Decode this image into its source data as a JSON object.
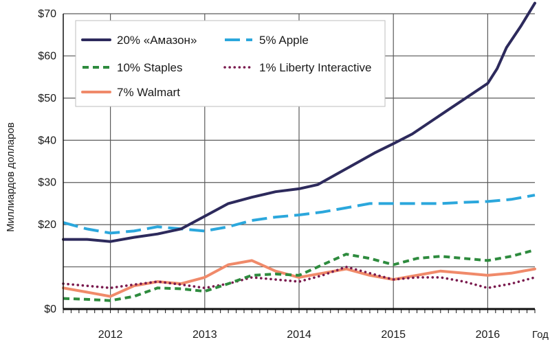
{
  "chart_data": {
    "type": "line",
    "title": "",
    "xlabel": "Год",
    "ylabel": "Миллиардов долларов",
    "x_ticks": [
      2012,
      2013,
      2014,
      2015,
      2016
    ],
    "x_tick_labels": [
      "2012",
      "2013",
      "2014",
      "2015",
      "2016"
    ],
    "xlim": [
      2011.5,
      2016.5
    ],
    "ylim": [
      0,
      70
    ],
    "y_ticks": [
      0,
      10,
      20,
      30,
      40,
      50,
      60,
      70
    ],
    "y_tick_labels": [
      "$0",
      "",
      "$20",
      "$30",
      "$40",
      "$50",
      "$60",
      "$70"
    ],
    "grid": true,
    "legend_position": "top-left",
    "series": [
      {
        "name": "20% «Амазон»",
        "color": "#2d2a5c",
        "dash": "solid",
        "x": [
          2011.5,
          2011.75,
          2012.0,
          2012.25,
          2012.5,
          2012.75,
          2013.0,
          2013.25,
          2013.5,
          2013.75,
          2014.0,
          2014.2,
          2014.4,
          2014.6,
          2014.8,
          2015.0,
          2015.2,
          2015.4,
          2015.6,
          2015.8,
          2016.0,
          2016.1,
          2016.2,
          2016.35,
          2016.5
        ],
        "values": [
          16.5,
          16.5,
          16.0,
          17.0,
          17.8,
          19.0,
          22.0,
          25.0,
          26.5,
          27.8,
          28.5,
          29.5,
          32.0,
          34.5,
          37.0,
          39.2,
          41.5,
          44.5,
          47.5,
          50.5,
          53.5,
          57.0,
          62.0,
          67.0,
          72.5
        ]
      },
      {
        "name": "5% Apple",
        "color": "#2ba7dc",
        "dash": "long-dash",
        "x": [
          2011.5,
          2011.75,
          2012.0,
          2012.25,
          2012.5,
          2012.75,
          2013.0,
          2013.25,
          2013.5,
          2013.75,
          2014.0,
          2014.25,
          2014.5,
          2014.75,
          2015.0,
          2015.25,
          2015.5,
          2015.75,
          2016.0,
          2016.25,
          2016.5
        ],
        "values": [
          20.5,
          19.0,
          18.0,
          18.5,
          19.5,
          19.0,
          18.5,
          19.5,
          21.0,
          21.8,
          22.3,
          23.0,
          24.0,
          25.0,
          25.0,
          25.0,
          25.0,
          25.3,
          25.5,
          26.0,
          27.0
        ]
      },
      {
        "name": "10% Staples",
        "color": "#2e8b3e",
        "dash": "dash",
        "x": [
          2011.5,
          2011.75,
          2012.0,
          2012.25,
          2012.5,
          2012.75,
          2013.0,
          2013.25,
          2013.5,
          2013.75,
          2014.0,
          2014.25,
          2014.5,
          2014.75,
          2015.0,
          2015.25,
          2015.5,
          2015.75,
          2016.0,
          2016.25,
          2016.5
        ],
        "values": [
          2.5,
          2.3,
          2.0,
          3.0,
          5.0,
          4.8,
          4.2,
          6.0,
          8.0,
          8.3,
          8.0,
          10.5,
          13.0,
          12.0,
          10.5,
          12.0,
          12.5,
          12.0,
          11.5,
          12.5,
          14.0
        ]
      },
      {
        "name": "1% Liberty Interactive",
        "color": "#7a1a4e",
        "dash": "dotted",
        "x": [
          2011.5,
          2011.75,
          2012.0,
          2012.25,
          2012.5,
          2012.75,
          2013.0,
          2013.25,
          2013.5,
          2013.75,
          2014.0,
          2014.25,
          2014.5,
          2014.75,
          2015.0,
          2015.25,
          2015.5,
          2015.75,
          2016.0,
          2016.25,
          2016.5
        ],
        "values": [
          6.0,
          5.5,
          5.0,
          5.8,
          6.5,
          5.8,
          5.0,
          6.0,
          7.5,
          7.0,
          6.5,
          8.0,
          10.0,
          8.5,
          7.0,
          7.5,
          7.5,
          6.5,
          5.0,
          6.0,
          7.5
        ]
      },
      {
        "name": "7% Walmart",
        "color": "#f08a6a",
        "dash": "solid",
        "x": [
          2011.5,
          2011.75,
          2012.0,
          2012.25,
          2012.5,
          2012.75,
          2013.0,
          2013.25,
          2013.5,
          2013.75,
          2014.0,
          2014.25,
          2014.5,
          2014.75,
          2015.0,
          2015.25,
          2015.5,
          2015.75,
          2016.0,
          2016.25,
          2016.5
        ],
        "values": [
          5.0,
          4.0,
          3.0,
          5.5,
          6.5,
          6.0,
          7.5,
          10.5,
          11.5,
          9.0,
          7.5,
          8.5,
          9.5,
          8.0,
          7.0,
          8.0,
          9.0,
          8.5,
          8.0,
          8.5,
          9.5
        ]
      }
    ]
  }
}
